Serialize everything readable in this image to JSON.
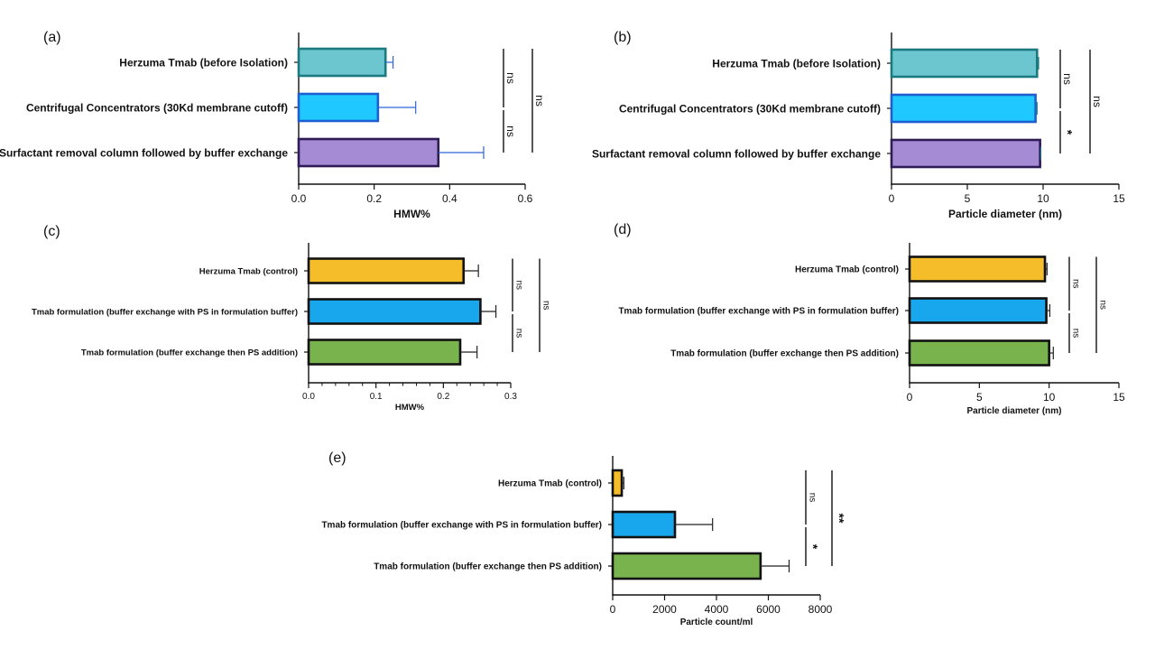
{
  "chart_data": [
    {
      "panel_label": "(a)",
      "type": "bar",
      "orientation": "horizontal",
      "categories": [
        "Herzuma Tmab (before Isolation)",
        "Centrifugal Concentrators (30Kd membrane cutoff)",
        "Surfactant removal column followed by buffer exchange"
      ],
      "values": [
        0.23,
        0.21,
        0.37
      ],
      "errors": [
        0.02,
        0.1,
        0.12
      ],
      "colors": [
        "#6cc6d0",
        "#1fc8ff",
        "#a48bd4"
      ],
      "edge_colors": [
        "#1b7a80",
        "#1d5fd0",
        "#2f1b55"
      ],
      "error_color": "#2f63d6",
      "xlabel": "HMW%",
      "xlim": [
        0,
        0.6
      ],
      "xticks": [
        "0.0",
        "0.2",
        "0.4",
        "0.6"
      ],
      "significance": [
        {
          "pair": [
            0,
            1
          ],
          "label": "ns"
        },
        {
          "pair": [
            1,
            2
          ],
          "label": "ns"
        },
        {
          "pair": [
            0,
            2
          ],
          "label": "ns"
        }
      ]
    },
    {
      "panel_label": "(b)",
      "type": "bar",
      "orientation": "horizontal",
      "categories": [
        "Herzuma Tmab (before Isolation)",
        "Centrifugal Concentrators (30Kd membrane cutoff)",
        "Surfactant removal column followed by buffer exchange"
      ],
      "values": [
        9.6,
        9.5,
        9.8
      ],
      "errors": [
        0.1,
        0.1,
        0.05
      ],
      "colors": [
        "#6cc6d0",
        "#1fc8ff",
        "#a48bd4"
      ],
      "edge_colors": [
        "#1b7a80",
        "#1d5fd0",
        "#2f1b55"
      ],
      "error_color": "#1b7a80",
      "xlabel": "Particle diameter (nm)",
      "xlim": [
        0,
        15
      ],
      "xticks": [
        "0",
        "5",
        "10",
        "15"
      ],
      "significance": [
        {
          "pair": [
            0,
            1
          ],
          "label": "ns"
        },
        {
          "pair": [
            1,
            2
          ],
          "label": "*"
        },
        {
          "pair": [
            0,
            2
          ],
          "label": "ns"
        }
      ]
    },
    {
      "panel_label": "(c)",
      "type": "bar",
      "orientation": "horizontal",
      "categories": [
        "Herzuma Tmab (control)",
        "Tmab formulation (buffer exchange with PS in formulation buffer)",
        "Tmab formulation (buffer exchange then PS addition)"
      ],
      "values": [
        0.23,
        0.255,
        0.225
      ],
      "errors": [
        0.022,
        0.023,
        0.025
      ],
      "colors": [
        "#f5bd2a",
        "#18a6ec",
        "#78b34e"
      ],
      "edge_colors": [
        "#111111",
        "#111111",
        "#111111"
      ],
      "error_color": "#222222",
      "xlabel": "HMW%",
      "xlim": [
        0,
        0.3
      ],
      "xticks": [
        "0.0",
        "0.1",
        "0.2",
        "0.3"
      ],
      "significance": [
        {
          "pair": [
            0,
            1
          ],
          "label": "ns"
        },
        {
          "pair": [
            1,
            2
          ],
          "label": "ns"
        },
        {
          "pair": [
            0,
            2
          ],
          "label": "ns"
        }
      ]
    },
    {
      "panel_label": "(d)",
      "type": "bar",
      "orientation": "horizontal",
      "categories": [
        "Herzuma Tmab (control)",
        "Tmab formulation (buffer exchange with PS in formulation buffer)",
        "Tmab formulation (buffer exchange then PS addition)"
      ],
      "values": [
        9.7,
        9.8,
        10.0
      ],
      "errors": [
        0.15,
        0.25,
        0.3
      ],
      "colors": [
        "#f5bd2a",
        "#18a6ec",
        "#78b34e"
      ],
      "edge_colors": [
        "#111111",
        "#111111",
        "#111111"
      ],
      "error_color": "#222222",
      "xlabel": "Particle diameter (nm)",
      "xlim": [
        0,
        15
      ],
      "xticks": [
        "0",
        "5",
        "10",
        "15"
      ],
      "significance": [
        {
          "pair": [
            0,
            1
          ],
          "label": "ns"
        },
        {
          "pair": [
            1,
            2
          ],
          "label": "ns"
        },
        {
          "pair": [
            0,
            2
          ],
          "label": "ns"
        }
      ]
    },
    {
      "panel_label": "(e)",
      "type": "bar",
      "orientation": "horizontal",
      "categories": [
        "Herzuma Tmab (control)",
        "Tmab formulation (buffer exchange with PS in formulation buffer)",
        "Tmab formulation (buffer exchange then PS addition)"
      ],
      "values": [
        350,
        2400,
        5700
      ],
      "errors": [
        80,
        1450,
        1100
      ],
      "colors": [
        "#f5bd2a",
        "#18a6ec",
        "#78b34e"
      ],
      "edge_colors": [
        "#111111",
        "#111111",
        "#111111"
      ],
      "error_color": "#222222",
      "xlabel": "Particle count/ml",
      "xlim": [
        0,
        8000
      ],
      "xticks": [
        "0",
        "2000",
        "4000",
        "6000",
        "8000"
      ],
      "significance": [
        {
          "pair": [
            0,
            1
          ],
          "label": "ns"
        },
        {
          "pair": [
            1,
            2
          ],
          "label": "*"
        },
        {
          "pair": [
            0,
            2
          ],
          "label": "**"
        }
      ]
    }
  ]
}
